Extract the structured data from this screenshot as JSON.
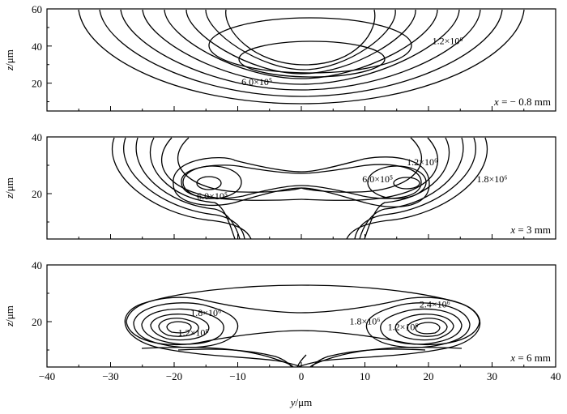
{
  "chart_data": {
    "type": "contour",
    "xlabel": "y/μm",
    "xlim": [
      -40,
      40
    ],
    "xticks": [
      "−40",
      "−30",
      "−20",
      "−10",
      "0",
      "10",
      "20",
      "30",
      "40"
    ],
    "x_tick_values": [
      -40,
      -30,
      -20,
      -10,
      0,
      10,
      20,
      30,
      40
    ],
    "panels": [
      {
        "ylabel": "z/μm",
        "ylim": [
          5,
          60
        ],
        "yticks": [
          "20",
          "40",
          "60"
        ],
        "y_tick_values": [
          20,
          40,
          60
        ],
        "panel_label": "x = − 0.8 mm",
        "contour_labels": [
          {
            "text": "1.2×10⁶",
            "y": 23,
            "z": 41
          },
          {
            "text": "6.0×10⁵",
            "y": -7,
            "z": 19
          }
        ]
      },
      {
        "ylabel": "z/μm",
        "ylim": [
          4,
          40
        ],
        "yticks": [
          "20",
          "40"
        ],
        "y_tick_values": [
          20,
          40
        ],
        "panel_label": "x = 3 mm",
        "contour_labels": [
          {
            "text": "1.2×10⁶",
            "y": 19,
            "z": 30
          },
          {
            "text": "6.0×10⁵",
            "y": 12,
            "z": 24
          },
          {
            "text": "1.8×10⁶",
            "y": 30,
            "z": 24
          },
          {
            "text": "6.0×10⁵",
            "y": -14,
            "z": 18
          }
        ]
      },
      {
        "ylabel": "z/μm",
        "ylim": [
          4,
          40
        ],
        "yticks": [
          "20",
          "40"
        ],
        "y_tick_values": [
          20,
          40
        ],
        "panel_label": "x = 6 mm",
        "contour_labels": [
          {
            "text": "2.4×10⁶",
            "y": 21,
            "z": 25
          },
          {
            "text": "1.8×10⁶",
            "y": -15,
            "z": 22
          },
          {
            "text": "1.8×10⁶",
            "y": 10,
            "z": 19
          },
          {
            "text": "1.2×10⁶",
            "y": -17,
            "z": 15
          },
          {
            "text": "1.2×10⁶",
            "y": 16,
            "z": 17
          }
        ]
      }
    ]
  }
}
